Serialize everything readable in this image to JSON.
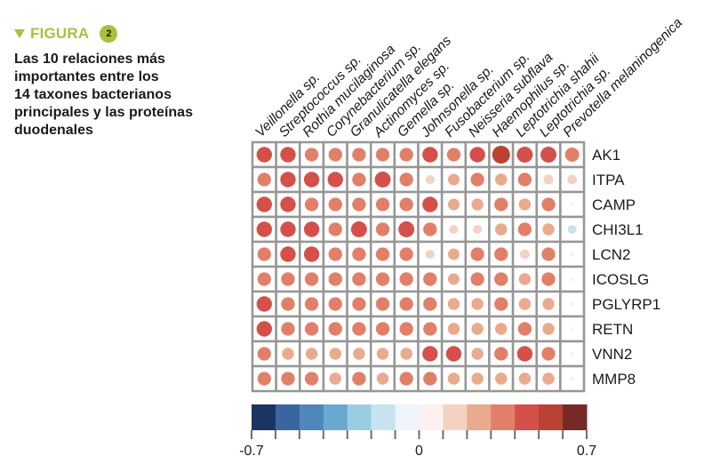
{
  "figure": {
    "label": "FIGURA",
    "number": "2",
    "title": "Las 10 relaciones más\nimportantes entre los\n14 taxones bacterianos\nprincipales y las proteínas\nduodenales",
    "accent_color": "#a6c23c"
  },
  "chart_data": {
    "type": "heatmap",
    "style": "correlation dot plot (circle size and color encode value)",
    "title": "Las 10 relaciones más importantes entre los 14 taxones bacterianos principales y las proteínas duodenales",
    "columns": [
      "Veillonella sp.",
      "Streptococcus sp.",
      "Rothia mucilaginosa",
      "Corynebacterium sp.",
      "Granulicatella elegans",
      "Actinomyces sp.",
      "Gemella sp.",
      "Johnsonella sp.",
      "Fusobacterium sp.",
      "Neisseria subflava",
      "Haemophilus sp.",
      "Leptotrichia shahii",
      "Leptotrichia sp.",
      "Prevotella melaninogenica"
    ],
    "rows": [
      "AK1",
      "ITPA",
      "CAMP",
      "CHI3L1",
      "LCN2",
      "ICOSLG",
      "PGLYRP1",
      "RETN",
      "VNN2",
      "MMP8"
    ],
    "values": [
      [
        0.45,
        0.45,
        0.35,
        0.35,
        0.35,
        0.35,
        0.35,
        0.45,
        0.35,
        0.45,
        0.6,
        0.48,
        0.48,
        0.38
      ],
      [
        0.35,
        0.45,
        0.45,
        0.45,
        0.35,
        0.48,
        0.35,
        0.15,
        0.25,
        0.35,
        0.27,
        0.35,
        0.18,
        0.17
      ],
      [
        0.45,
        0.45,
        0.35,
        0.35,
        0.35,
        0.35,
        0.35,
        0.45,
        0.25,
        0.27,
        0.35,
        0.27,
        0.35,
        0.02
      ],
      [
        0.45,
        0.45,
        0.45,
        0.35,
        0.48,
        0.35,
        0.48,
        0.35,
        0.15,
        0.15,
        0.27,
        0.35,
        0.27,
        -0.15
      ],
      [
        0.35,
        0.45,
        0.45,
        0.35,
        0.35,
        0.35,
        0.35,
        0.15,
        0.25,
        0.35,
        0.35,
        0.17,
        0.35,
        0.05
      ],
      [
        0.35,
        0.35,
        0.35,
        0.35,
        0.35,
        0.35,
        0.35,
        0.35,
        0.25,
        0.35,
        0.35,
        0.27,
        0.35,
        0.03
      ],
      [
        0.45,
        0.35,
        0.35,
        0.35,
        0.35,
        0.35,
        0.35,
        0.35,
        0.27,
        0.27,
        0.35,
        0.27,
        0.27,
        -0.03
      ],
      [
        0.45,
        0.35,
        0.35,
        0.35,
        0.35,
        0.35,
        0.35,
        0.35,
        0.27,
        0.27,
        0.27,
        0.35,
        0.27,
        0.02
      ],
      [
        0.35,
        0.27,
        0.27,
        0.27,
        0.27,
        0.27,
        0.27,
        0.45,
        0.45,
        0.27,
        0.35,
        0.45,
        0.35,
        0.03
      ],
      [
        0.35,
        0.35,
        0.35,
        0.27,
        0.35,
        0.27,
        0.35,
        0.35,
        0.27,
        0.27,
        0.27,
        0.27,
        0.27,
        0.03
      ]
    ],
    "colorbar": {
      "range": [
        -0.7,
        0.7
      ],
      "tick_labels": [
        "-0.7",
        "0",
        "0.7"
      ],
      "bins": 14,
      "colors": [
        "#1b3563",
        "#3a65a0",
        "#5086be",
        "#6aa9cf",
        "#9acde4",
        "#c8e3ef",
        "#eef5fb",
        "#fcf1ef",
        "#f3d2c1",
        "#e9aa8d",
        "#e27f68",
        "#d5504a",
        "#b94232",
        "#762a28"
      ],
      "placement": "bottom"
    },
    "grid": true
  }
}
